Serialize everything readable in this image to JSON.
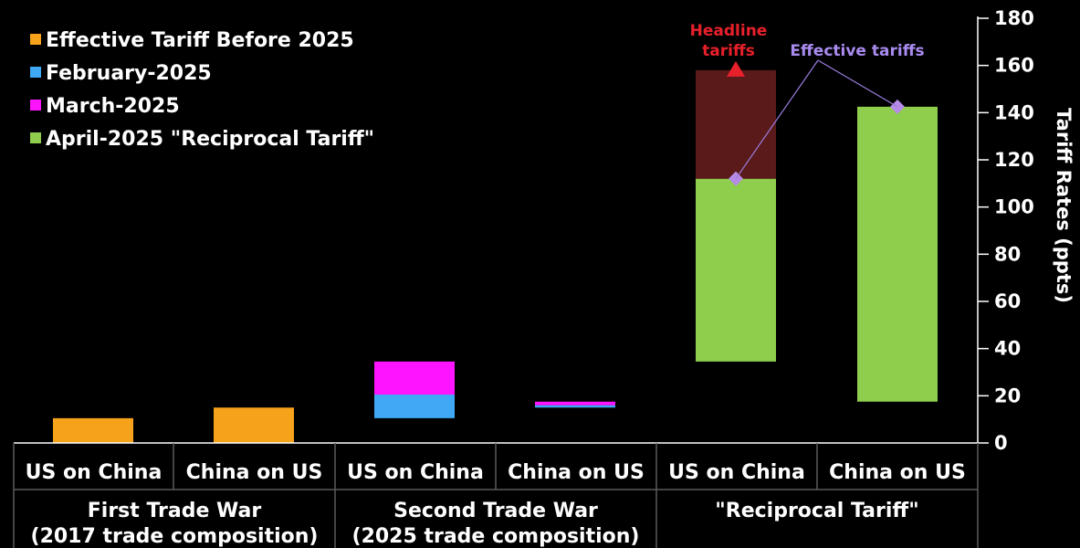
{
  "colors": {
    "background": "#000000",
    "effective_before": "#f7a21b",
    "february": "#3fa9f5",
    "march": "#ff14ff",
    "april": "#8fce4c",
    "headline_band": "#5a1a1a",
    "headline_marker": "#e8202a",
    "effective_marker": "#b78be8",
    "connector": "#9b7ee0",
    "divider": "#5a5a5a"
  },
  "chart_data": {
    "type": "bar",
    "stacked": true,
    "ylabel": "Tariff Rates (ppts)",
    "ylim": [
      0,
      180
    ],
    "yticks": [
      0,
      20,
      40,
      60,
      80,
      100,
      120,
      140,
      160,
      180
    ],
    "y_axis_side": "right",
    "legend_position": "top-left",
    "legend": [
      {
        "label": "Effective Tariff Before 2025",
        "color": "#f7a21b"
      },
      {
        "label": "February-2025",
        "color": "#3fa9f5"
      },
      {
        "label": "March-2025",
        "color": "#ff14ff"
      },
      {
        "label": "April-2025 \"Reciprocal Tariff\"",
        "color": "#8fce4c"
      }
    ],
    "categories": [
      "US on China",
      "China on US",
      "US on China",
      "China on US",
      "US on China",
      "China on US"
    ],
    "groups": [
      {
        "line1": "First Trade War",
        "line2": "(2017 trade composition)",
        "span": [
          0,
          1
        ]
      },
      {
        "line1": "Second Trade War",
        "line2": "(2025 trade composition)",
        "span": [
          2,
          3
        ]
      },
      {
        "line1": "\"Reciprocal Tariff\"",
        "line2": "",
        "span": [
          4,
          5
        ]
      }
    ],
    "bars": [
      {
        "category_index": 0,
        "segments": [
          {
            "series": "Effective Tariff Before 2025",
            "from": 0,
            "to": 10.5
          }
        ]
      },
      {
        "category_index": 1,
        "segments": [
          {
            "series": "Effective Tariff Before 2025",
            "from": 0,
            "to": 15
          }
        ]
      },
      {
        "category_index": 2,
        "segments": [
          {
            "series": "February-2025",
            "from": 10.5,
            "to": 20.5
          },
          {
            "series": "March-2025",
            "from": 20.5,
            "to": 34.5
          }
        ]
      },
      {
        "category_index": 3,
        "segments": [
          {
            "series": "February-2025",
            "from": 15,
            "to": 16
          },
          {
            "series": "March-2025",
            "from": 16,
            "to": 17.5
          }
        ]
      },
      {
        "category_index": 4,
        "segments": [
          {
            "series": "April-2025 \"Reciprocal Tariff\"",
            "from": 34.5,
            "to": 112
          },
          {
            "series": "Headline tariffs",
            "from": 112,
            "to": 158
          }
        ]
      },
      {
        "category_index": 5,
        "segments": [
          {
            "series": "April-2025 \"Reciprocal Tariff\"",
            "from": 17.5,
            "to": 142.5
          }
        ]
      }
    ],
    "markers": [
      {
        "type": "headline",
        "category_index": 4,
        "value": 158
      },
      {
        "type": "effective",
        "category_index": 4,
        "value": 112
      },
      {
        "type": "effective",
        "category_index": 5,
        "value": 142.5
      }
    ],
    "annotations": {
      "headline_line1": "Headline",
      "headline_line2": "tariffs",
      "effective": "Effective tariffs"
    }
  }
}
